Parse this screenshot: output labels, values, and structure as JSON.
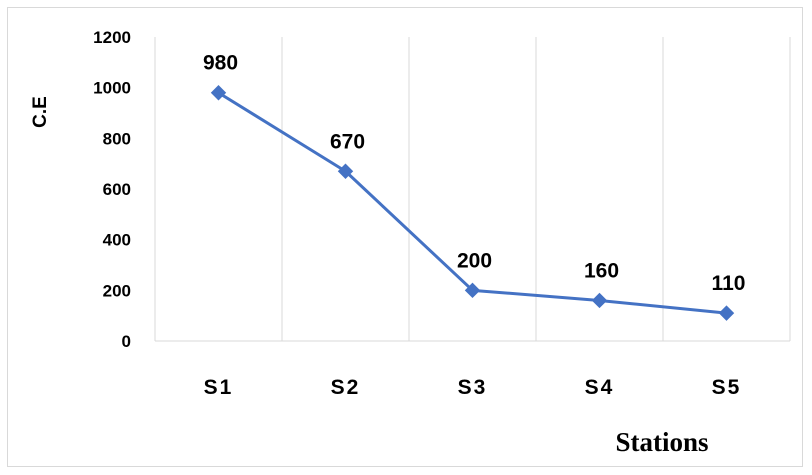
{
  "chart_data": {
    "type": "line",
    "title": "",
    "xlabel": "Stations",
    "ylabel": "C.E",
    "categories": [
      "S1",
      "S2",
      "S3",
      "S4",
      "S5"
    ],
    "series": [
      {
        "values": [
          980,
          670,
          200,
          160,
          110
        ]
      }
    ],
    "data_labels": [
      "980",
      "670",
      "200",
      "160",
      "110"
    ],
    "ylim": [
      0,
      1200
    ],
    "yticks": [
      0,
      200,
      400,
      600,
      800,
      1000,
      1200
    ],
    "ytick_labels": [
      "0",
      "200",
      "400",
      "600",
      "800",
      "1000",
      "1200"
    ],
    "grid": "vertical",
    "legend": "none",
    "line_color": "#4472c4",
    "marker": "diamond",
    "gridline_color": "#d9d9d9"
  }
}
